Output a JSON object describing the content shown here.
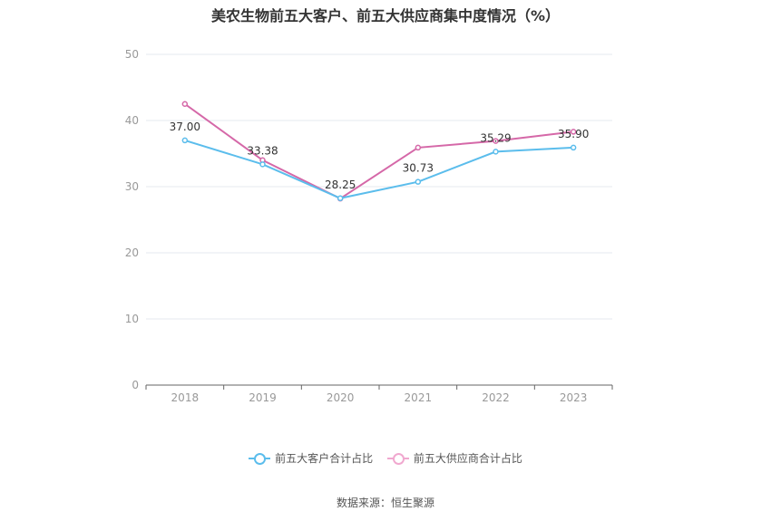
{
  "title": "美农生物前五大客户、前五大供应商集中度情况（%）",
  "source": "数据来源：恒生聚源",
  "colors": {
    "customers": "#5bbdec",
    "suppliers": "#d568a8",
    "axis": "#999999",
    "grid": "#e6e8ef"
  },
  "chart_data": {
    "type": "line",
    "title": "美农生物前五大客户、前五大供应商集中度情况（%）",
    "xlabel": "",
    "ylabel": "",
    "categories": [
      "2018",
      "2019",
      "2020",
      "2021",
      "2022",
      "2023"
    ],
    "ylim": [
      0,
      50
    ],
    "yticks": [
      "0",
      "10",
      "20",
      "30",
      "40",
      "50"
    ],
    "grid": true,
    "legend_position": "bottom",
    "series": [
      {
        "name": "前五大客户合计占比",
        "values": [
          37.0,
          33.38,
          28.25,
          30.73,
          35.29,
          35.9
        ],
        "labels": [
          "37.00",
          "33.38",
          "28.25",
          "30.73",
          "35.29",
          "35.90"
        ]
      },
      {
        "name": "前五大供应商合计占比",
        "values": [
          42.5,
          34.0,
          28.2,
          35.9,
          36.9,
          38.3
        ]
      }
    ]
  }
}
